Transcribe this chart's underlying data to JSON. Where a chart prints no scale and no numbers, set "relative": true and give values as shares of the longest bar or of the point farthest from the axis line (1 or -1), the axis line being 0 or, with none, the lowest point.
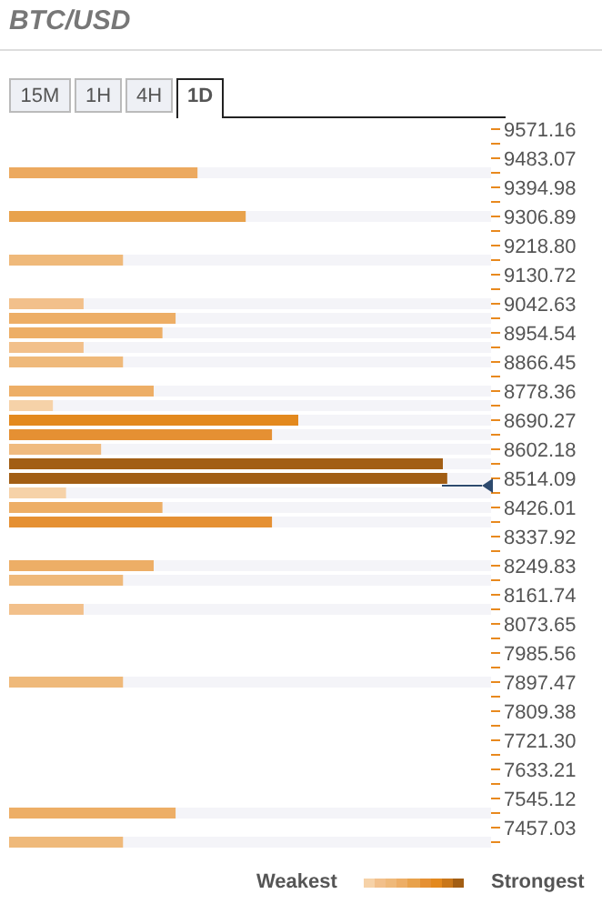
{
  "chart_data": {
    "type": "bar",
    "orientation": "horizontal",
    "relative": true,
    "title": "BTC/USD",
    "categories": [
      "9571.16",
      null,
      "9483.07",
      null,
      "9394.98",
      null,
      "9306.89",
      null,
      "9218.80",
      null,
      "9130.72",
      null,
      "9042.63",
      null,
      "8954.54",
      null,
      "8866.45",
      null,
      "8778.36",
      null,
      "8690.27",
      null,
      "8602.18",
      null,
      "8514.09",
      null,
      "8426.01",
      null,
      "8337.92",
      null,
      "8249.83",
      null,
      "8161.74",
      null,
      "8073.65",
      null,
      "7985.56",
      null,
      "7897.47",
      null,
      "7809.38",
      null,
      "7721.30",
      null,
      "7633.21",
      null,
      "7545.12",
      null,
      "7457.03",
      null
    ],
    "values": [
      null,
      null,
      null,
      0.43,
      null,
      null,
      0.54,
      null,
      null,
      0.26,
      null,
      null,
      0.17,
      0.38,
      0.35,
      0.17,
      0.26,
      null,
      0.33,
      0.1,
      0.66,
      0.6,
      0.21,
      0.99,
      1,
      0.13,
      0.35,
      0.6,
      null,
      null,
      0.33,
      0.26,
      null,
      0.17,
      null,
      null,
      null,
      null,
      0.26,
      null,
      null,
      null,
      null,
      null,
      null,
      null,
      null,
      0.38,
      null,
      0.26
    ],
    "colors": [
      null,
      null,
      null,
      "#eca95f",
      null,
      null,
      "#e8a24c",
      null,
      null,
      "#efb97a",
      null,
      null,
      "#f2c08b",
      "#edae66",
      "#edae66",
      "#f2c08b",
      "#efb97a",
      null,
      "#edae66",
      "#f6d2a8",
      "#e3891e",
      "#e59033",
      "#f0bb80",
      "#a25e14",
      "#a25e14",
      "#f6d2a8",
      "#edae66",
      "#e59033",
      null,
      null,
      "#edae66",
      "#efb97a",
      null,
      "#f2c08b",
      null,
      null,
      null,
      null,
      "#efb97a",
      null,
      null,
      null,
      null,
      null,
      null,
      null,
      null,
      "#edae66",
      null,
      "#efb97a"
    ],
    "annotations": [
      "15M",
      "1H",
      "4H",
      "1D",
      "Weakest",
      "Strongest"
    ]
  }
}
